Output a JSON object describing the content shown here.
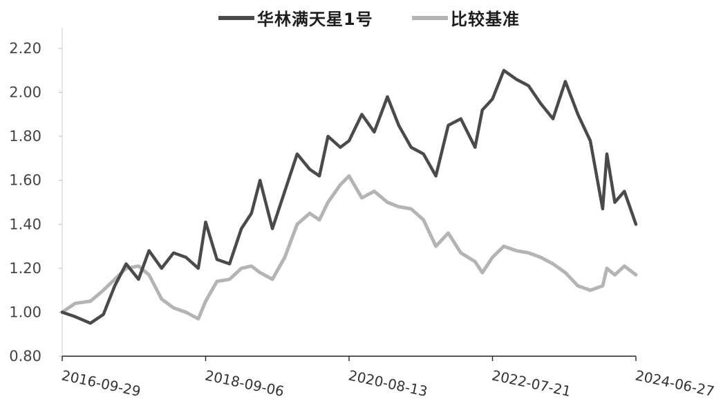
{
  "chart_data": {
    "type": "line",
    "title": "",
    "xlabel": "",
    "ylabel": "",
    "ylim": [
      0.8,
      2.2
    ],
    "yticks": [
      "0.80",
      "1.00",
      "1.20",
      "1.40",
      "1.60",
      "1.80",
      "2.00",
      "2.20"
    ],
    "xticks": [
      "2016-09-29",
      "2018-09-06",
      "2020-08-13",
      "2022-07-21",
      "2024-06-27"
    ],
    "legend_position": "top-center",
    "grid": false,
    "series": [
      {
        "name": "华林满天星1号",
        "color": "#4a4a4a",
        "x": [
          "2016-09-29",
          "2016-12-01",
          "2017-02-15",
          "2017-04-20",
          "2017-06-15",
          "2017-08-10",
          "2017-10-10",
          "2017-12-01",
          "2018-02-01",
          "2018-04-01",
          "2018-06-01",
          "2018-08-01",
          "2018-09-06",
          "2018-11-01",
          "2019-01-02",
          "2019-03-01",
          "2019-04-20",
          "2019-06-01",
          "2019-08-01",
          "2019-10-01",
          "2019-12-01",
          "2020-02-01",
          "2020-03-20",
          "2020-05-01",
          "2020-07-01",
          "2020-08-13",
          "2020-10-15",
          "2020-12-15",
          "2021-02-18",
          "2021-04-15",
          "2021-06-15",
          "2021-08-15",
          "2021-10-15",
          "2021-12-15",
          "2022-02-15",
          "2022-04-26",
          "2022-06-01",
          "2022-07-21",
          "2022-09-15",
          "2022-11-15",
          "2023-01-15",
          "2023-03-15",
          "2023-05-15",
          "2023-07-15",
          "2023-09-15",
          "2023-11-15",
          "2024-01-15",
          "2024-02-05",
          "2024-03-15",
          "2024-05-01",
          "2024-06-27"
        ],
        "y": [
          1.0,
          0.98,
          0.95,
          0.99,
          1.12,
          1.22,
          1.15,
          1.28,
          1.2,
          1.27,
          1.25,
          1.2,
          1.41,
          1.24,
          1.22,
          1.38,
          1.45,
          1.6,
          1.38,
          1.55,
          1.72,
          1.65,
          1.62,
          1.8,
          1.75,
          1.78,
          1.9,
          1.82,
          1.98,
          1.85,
          1.75,
          1.72,
          1.62,
          1.85,
          1.88,
          1.75,
          1.92,
          1.97,
          2.1,
          2.06,
          2.03,
          1.95,
          1.88,
          2.05,
          1.9,
          1.78,
          1.47,
          1.72,
          1.5,
          1.55,
          1.4
        ]
      },
      {
        "name": "比较基准",
        "color": "#b4b4b4",
        "x": [
          "2016-09-29",
          "2016-12-01",
          "2017-02-15",
          "2017-04-20",
          "2017-06-15",
          "2017-08-10",
          "2017-10-10",
          "2017-12-01",
          "2018-02-01",
          "2018-04-01",
          "2018-06-01",
          "2018-08-01",
          "2018-09-06",
          "2018-11-01",
          "2019-01-02",
          "2019-03-01",
          "2019-04-20",
          "2019-06-01",
          "2019-08-01",
          "2019-10-01",
          "2019-12-01",
          "2020-02-01",
          "2020-03-20",
          "2020-05-01",
          "2020-07-01",
          "2020-08-13",
          "2020-10-15",
          "2020-12-15",
          "2021-02-18",
          "2021-04-15",
          "2021-06-15",
          "2021-08-15",
          "2021-10-15",
          "2021-12-15",
          "2022-02-15",
          "2022-04-26",
          "2022-06-01",
          "2022-07-21",
          "2022-09-15",
          "2022-11-15",
          "2023-01-15",
          "2023-03-15",
          "2023-05-15",
          "2023-07-15",
          "2023-09-15",
          "2023-11-15",
          "2024-01-15",
          "2024-02-05",
          "2024-03-15",
          "2024-05-01",
          "2024-06-27"
        ],
        "y": [
          1.0,
          1.04,
          1.05,
          1.1,
          1.15,
          1.2,
          1.21,
          1.17,
          1.06,
          1.02,
          1.0,
          0.97,
          1.05,
          1.14,
          1.15,
          1.2,
          1.21,
          1.18,
          1.15,
          1.25,
          1.4,
          1.45,
          1.42,
          1.5,
          1.58,
          1.62,
          1.52,
          1.55,
          1.5,
          1.48,
          1.47,
          1.42,
          1.3,
          1.36,
          1.27,
          1.23,
          1.18,
          1.25,
          1.3,
          1.28,
          1.27,
          1.25,
          1.22,
          1.18,
          1.12,
          1.1,
          1.12,
          1.2,
          1.17,
          1.21,
          1.17
        ]
      }
    ]
  }
}
